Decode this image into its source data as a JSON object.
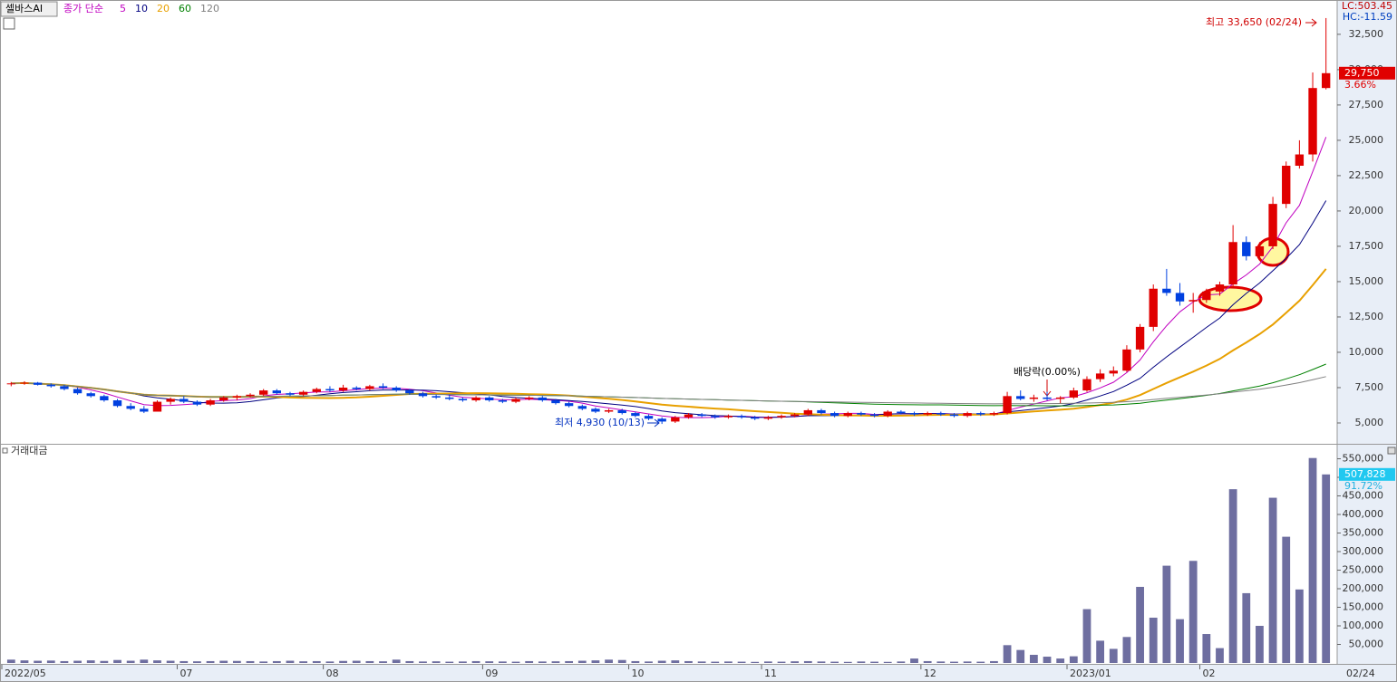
{
  "chart_data": [
    {
      "type": "candlestick",
      "title": "셀바스AI",
      "legend_label": "종가 단순",
      "ma_periods": [
        5,
        10,
        20,
        60,
        120
      ],
      "ma_colors": [
        "#c000c0",
        "#000080",
        "#e8a000",
        "#008000",
        "#808080"
      ],
      "up_color": "#e00000",
      "down_color": "#0040e0",
      "ylim": [
        3525,
        34800
      ],
      "yticks": [
        {
          "value": 5000,
          "label": "5,000"
        },
        {
          "value": 7500,
          "label": "7,500"
        },
        {
          "value": 10000,
          "label": "10,000"
        },
        {
          "value": 12500,
          "label": "12,500"
        },
        {
          "value": 15000,
          "label": "15,000"
        },
        {
          "value": 17500,
          "label": "17,500"
        },
        {
          "value": 20000,
          "label": "20,000"
        },
        {
          "value": 22500,
          "label": "22,500"
        },
        {
          "value": 25000,
          "label": "25,000"
        },
        {
          "value": 27500,
          "label": "27,500"
        },
        {
          "value": 30000,
          "label": "30,000"
        },
        {
          "value": 32500,
          "label": "32,500"
        }
      ],
      "last": {
        "value": 29750,
        "label": "29,750"
      },
      "change_label": "3.66%",
      "corner_labels": [
        "LC:503.45",
        "HC:-11.59"
      ],
      "annotations": [
        "최고 33,650 (02/24)",
        "최저 4,930 (10/13)",
        "배당락(0.00%)"
      ],
      "ohlc": [
        [
          7750,
          7900,
          7600,
          7800
        ],
        [
          7800,
          7950,
          7700,
          7850
        ],
        [
          7850,
          7900,
          7650,
          7700
        ],
        [
          7700,
          7800,
          7500,
          7600
        ],
        [
          7600,
          7700,
          7300,
          7400
        ],
        [
          7400,
          7500,
          7000,
          7100
        ],
        [
          7100,
          7200,
          6800,
          6900
        ],
        [
          6900,
          7000,
          6500,
          6600
        ],
        [
          6600,
          6700,
          6100,
          6200
        ],
        [
          6200,
          6400,
          5900,
          6000
        ],
        [
          6000,
          6200,
          5700,
          5800
        ],
        [
          5800,
          6600,
          5800,
          6500
        ],
        [
          6500,
          6800,
          6300,
          6700
        ],
        [
          6700,
          6900,
          6400,
          6500
        ],
        [
          6500,
          6600,
          6200,
          6300
        ],
        [
          6300,
          6700,
          6200,
          6600
        ],
        [
          6600,
          6900,
          6500,
          6800
        ],
        [
          6800,
          7000,
          6600,
          6900
        ],
        [
          6900,
          7100,
          6800,
          7000
        ],
        [
          7000,
          7400,
          6900,
          7300
        ],
        [
          7300,
          7400,
          7000,
          7100
        ],
        [
          7100,
          7200,
          6900,
          7000
        ],
        [
          7000,
          7300,
          6900,
          7200
        ],
        [
          7200,
          7500,
          7100,
          7400
        ],
        [
          7400,
          7600,
          7200,
          7300
        ],
        [
          7300,
          7700,
          7200,
          7500
        ],
        [
          7500,
          7600,
          7300,
          7400
        ],
        [
          7400,
          7700,
          7300,
          7600
        ],
        [
          7600,
          7800,
          7400,
          7500
        ],
        [
          7500,
          7600,
          7200,
          7300
        ],
        [
          7300,
          7400,
          7000,
          7100
        ],
        [
          7100,
          7200,
          6800,
          6900
        ],
        [
          6900,
          7000,
          6700,
          6800
        ],
        [
          6800,
          7000,
          6600,
          6700
        ],
        [
          6700,
          6800,
          6500,
          6600
        ],
        [
          6600,
          6900,
          6500,
          6800
        ],
        [
          6800,
          6900,
          6500,
          6600
        ],
        [
          6600,
          6700,
          6400,
          6500
        ],
        [
          6500,
          6800,
          6400,
          6700
        ],
        [
          6700,
          6900,
          6600,
          6800
        ],
        [
          6800,
          6900,
          6500,
          6600
        ],
        [
          6600,
          6700,
          6300,
          6400
        ],
        [
          6400,
          6500,
          6100,
          6200
        ],
        [
          6200,
          6300,
          5900,
          6000
        ],
        [
          6000,
          6100,
          5700,
          5800
        ],
        [
          5800,
          6000,
          5700,
          5900
        ],
        [
          5900,
          6000,
          5600,
          5700
        ],
        [
          5700,
          5800,
          5400,
          5500
        ],
        [
          5500,
          5600,
          5200,
          5300
        ],
        [
          5300,
          5400,
          4930,
          5100
        ],
        [
          5100,
          5500,
          5000,
          5400
        ],
        [
          5400,
          5700,
          5300,
          5600
        ],
        [
          5600,
          5700,
          5400,
          5500
        ],
        [
          5500,
          5600,
          5300,
          5400
        ],
        [
          5400,
          5600,
          5300,
          5500
        ],
        [
          5500,
          5600,
          5300,
          5400
        ],
        [
          5400,
          5500,
          5200,
          5300
        ],
        [
          5300,
          5500,
          5200,
          5400
        ],
        [
          5400,
          5600,
          5300,
          5500
        ],
        [
          5500,
          5700,
          5400,
          5600
        ],
        [
          5600,
          6000,
          5500,
          5900
        ],
        [
          5900,
          6000,
          5600,
          5700
        ],
        [
          5700,
          5800,
          5400,
          5500
        ],
        [
          5500,
          5800,
          5400,
          5700
        ],
        [
          5700,
          5800,
          5500,
          5600
        ],
        [
          5600,
          5700,
          5400,
          5500
        ],
        [
          5500,
          5900,
          5400,
          5800
        ],
        [
          5800,
          5900,
          5600,
          5700
        ],
        [
          5700,
          5800,
          5500,
          5600
        ],
        [
          5600,
          5800,
          5500,
          5700
        ],
        [
          5700,
          5800,
          5500,
          5600
        ],
        [
          5600,
          5700,
          5400,
          5500
        ],
        [
          5500,
          5800,
          5400,
          5700
        ],
        [
          5700,
          5800,
          5500,
          5600
        ],
        [
          5600,
          5800,
          5500,
          5700
        ],
        [
          5700,
          7200,
          5600,
          6900
        ],
        [
          6900,
          7300,
          6600,
          6700
        ],
        [
          6700,
          7000,
          6500,
          6800
        ],
        [
          6800,
          7200,
          6600,
          6700
        ],
        [
          6700,
          6900,
          6400,
          6800
        ],
        [
          6800,
          7500,
          6700,
          7300
        ],
        [
          7300,
          8300,
          7200,
          8100
        ],
        [
          8100,
          8800,
          7900,
          8500
        ],
        [
          8500,
          9000,
          8300,
          8700
        ],
        [
          8700,
          10500,
          8600,
          10200
        ],
        [
          10200,
          12000,
          10000,
          11800
        ],
        [
          11800,
          14800,
          11500,
          14500
        ],
        [
          14500,
          15900,
          14000,
          14200
        ],
        [
          14200,
          14900,
          13300,
          13600
        ],
        [
          13600,
          14200,
          12800,
          13700
        ],
        [
          13700,
          14500,
          13500,
          14300
        ],
        [
          14300,
          15000,
          14000,
          14800
        ],
        [
          14800,
          19000,
          14700,
          17800
        ],
        [
          17800,
          18200,
          16500,
          16800
        ],
        [
          16800,
          17800,
          16500,
          17500
        ],
        [
          17500,
          21000,
          17300,
          20500
        ],
        [
          20500,
          23500,
          20200,
          23200
        ],
        [
          23200,
          25000,
          23000,
          24000
        ],
        [
          24000,
          29800,
          23500,
          28700
        ],
        [
          28700,
          33650,
          28600,
          29750
        ]
      ]
    },
    {
      "type": "bar",
      "title": "거래대금",
      "color": "#6e6ea0",
      "ylim": [
        0,
        583000
      ],
      "yticks": [
        {
          "value": 50000,
          "label": "50,000"
        },
        {
          "value": 100000,
          "label": "100,000"
        },
        {
          "value": 150000,
          "label": "150,000"
        },
        {
          "value": 200000,
          "label": "200,000"
        },
        {
          "value": 250000,
          "label": "250,000"
        },
        {
          "value": 300000,
          "label": "300,000"
        },
        {
          "value": 350000,
          "label": "350,000"
        },
        {
          "value": 400000,
          "label": "400,000"
        },
        {
          "value": 450000,
          "label": "450,000"
        },
        {
          "value": 500000,
          "label": "500,000"
        },
        {
          "value": 550000,
          "label": "550,000"
        }
      ],
      "last": {
        "value": 507828,
        "label": "507,828"
      },
      "change_label": "91.72%",
      "last_date": "02/24",
      "categories": [
        "2022/05",
        null,
        null,
        null,
        null,
        null,
        null,
        null,
        null,
        null,
        null,
        null,
        null,
        "07",
        null,
        null,
        null,
        null,
        null,
        null,
        null,
        null,
        null,
        null,
        "08",
        null,
        null,
        null,
        null,
        null,
        null,
        null,
        null,
        null,
        null,
        null,
        "09",
        null,
        null,
        null,
        null,
        null,
        null,
        null,
        null,
        null,
        null,
        "10",
        null,
        null,
        null,
        null,
        null,
        null,
        null,
        null,
        null,
        "11",
        null,
        null,
        null,
        null,
        null,
        null,
        null,
        null,
        null,
        null,
        null,
        "12",
        null,
        null,
        null,
        null,
        null,
        null,
        null,
        null,
        null,
        null,
        "2023/01",
        null,
        null,
        null,
        null,
        null,
        null,
        null,
        null,
        null,
        "02",
        null,
        null,
        null,
        null,
        null,
        null,
        null,
        null,
        null
      ],
      "values": [
        9000,
        7000,
        6000,
        6500,
        5000,
        6000,
        7000,
        5500,
        8000,
        6000,
        9000,
        7000,
        6000,
        5000,
        4500,
        5000,
        6000,
        5500,
        5000,
        4000,
        5000,
        6000,
        4500,
        5000,
        4000,
        5500,
        6000,
        5000,
        4500,
        9000,
        5000,
        4000,
        4500,
        3500,
        4000,
        5000,
        4500,
        4000,
        3500,
        5000,
        4000,
        4500,
        5000,
        6000,
        7000,
        9000,
        8000,
        5000,
        4000,
        6000,
        7000,
        5000,
        4000,
        3500,
        4000,
        3500,
        3000,
        4000,
        3500,
        4500,
        5000,
        4000,
        3500,
        3000,
        4000,
        3500,
        3000,
        4000,
        12000,
        5000,
        4000,
        3500,
        4000,
        3500,
        5000,
        48000,
        35000,
        22000,
        17000,
        12000,
        18000,
        145000,
        60000,
        38000,
        70000,
        205000,
        122000,
        262000,
        118000,
        275000,
        78000,
        40000,
        468000,
        188000,
        100000,
        445000,
        340000,
        198000,
        552000,
        507828
      ]
    }
  ]
}
